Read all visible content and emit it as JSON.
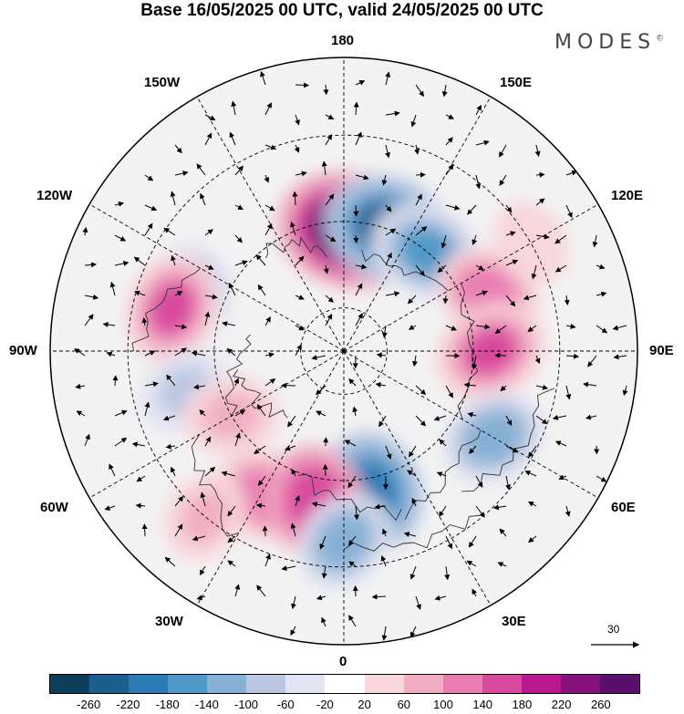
{
  "title": "Base 16/05/2025 00 UTC, valid 24/05/2025 00 UTC",
  "brand": {
    "name": "MODES",
    "mark": "©"
  },
  "longitude_labels": {
    "top": "180",
    "bottom": "0",
    "left": "90W",
    "right": "90E",
    "upper_left_1": "150W",
    "upper_left_2": "120W",
    "upper_right_1": "150E",
    "upper_right_2": "120E",
    "lower_left_1": "60W",
    "lower_left_2": "30W",
    "lower_right_1": "60E",
    "lower_right_2": "30E"
  },
  "reference_vector": {
    "label": "30"
  },
  "colorbar": {
    "colors": [
      "#0f3d5c",
      "#1b5f8f",
      "#2a7bb5",
      "#4f98c8",
      "#86b1d6",
      "#b9c7e2",
      "#e3e4f1",
      "#ffffff",
      "#f8d6dc",
      "#f1aec2",
      "#e97db2",
      "#d84a9e",
      "#b9188e",
      "#86107e",
      "#5a0e6e"
    ],
    "tick_labels": [
      "-260",
      "-220",
      "-180",
      "-140",
      "-100",
      "-60",
      "-20",
      "20",
      "60",
      "100",
      "140",
      "180",
      "220",
      "260"
    ]
  },
  "anomaly_centers": [
    {
      "lon": 178,
      "colat": 28,
      "value": 270
    },
    {
      "lon": 160,
      "colat": 30,
      "value": -220
    },
    {
      "lon": 140,
      "colat": 30,
      "value": -160
    },
    {
      "lon": 112,
      "colat": 36,
      "value": 130
    },
    {
      "lon": -110,
      "colat": 38,
      "value": -120
    },
    {
      "lon": -104,
      "colat": 41,
      "value": 150
    },
    {
      "lon": -76,
      "colat": 38,
      "value": -90
    },
    {
      "lon": -60,
      "colat": 30,
      "value": 100
    },
    {
      "lon": -28,
      "colat": 38,
      "value": 140
    },
    {
      "lon": 12,
      "colat": 33,
      "value": -180
    },
    {
      "lon": -10,
      "colat": 36,
      "value": 180
    },
    {
      "lon": 90,
      "colat": 34,
      "value": 160
    },
    {
      "lon": 60,
      "colat": 40,
      "value": -130
    },
    {
      "lon": 0,
      "colat": 44,
      "value": -120
    },
    {
      "lon": -40,
      "colat": 50,
      "value": 80
    },
    {
      "lon": 120,
      "colat": 50,
      "value": 60
    }
  ]
}
